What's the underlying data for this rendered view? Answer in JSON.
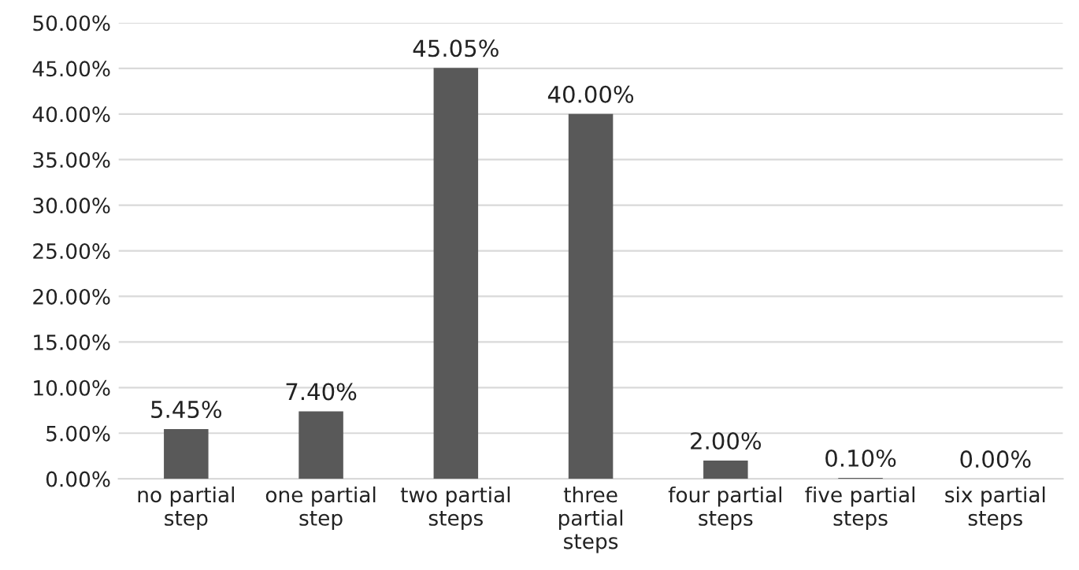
{
  "chart_data": {
    "type": "bar",
    "categories": [
      "no partial step",
      "one partial step",
      "two partial steps",
      "three partial steps",
      "four partial steps",
      "five partial steps",
      "six partial steps"
    ],
    "values": [
      5.45,
      7.4,
      45.05,
      40.0,
      2.0,
      0.1,
      0.0
    ],
    "value_labels": [
      "5.45%",
      "7.40%",
      "45.05%",
      "40.00%",
      "2.00%",
      "0.10%",
      "0.00%"
    ],
    "color": "#595959",
    "ylim": [
      0,
      50
    ],
    "yticks": [
      {
        "value": 0,
        "label": "0.00%"
      },
      {
        "value": 5,
        "label": "5.00%"
      },
      {
        "value": 10,
        "label": "10.00%"
      },
      {
        "value": 15,
        "label": "15.00%"
      },
      {
        "value": 20,
        "label": "20.00%"
      },
      {
        "value": 25,
        "label": "25.00%"
      },
      {
        "value": 30,
        "label": "30.00%"
      },
      {
        "value": 35,
        "label": "35.00%"
      },
      {
        "value": 40,
        "label": "40.00%"
      },
      {
        "value": 45,
        "label": "45.00%"
      },
      {
        "value": 50,
        "label": "50.00%"
      }
    ],
    "grid": "y"
  }
}
